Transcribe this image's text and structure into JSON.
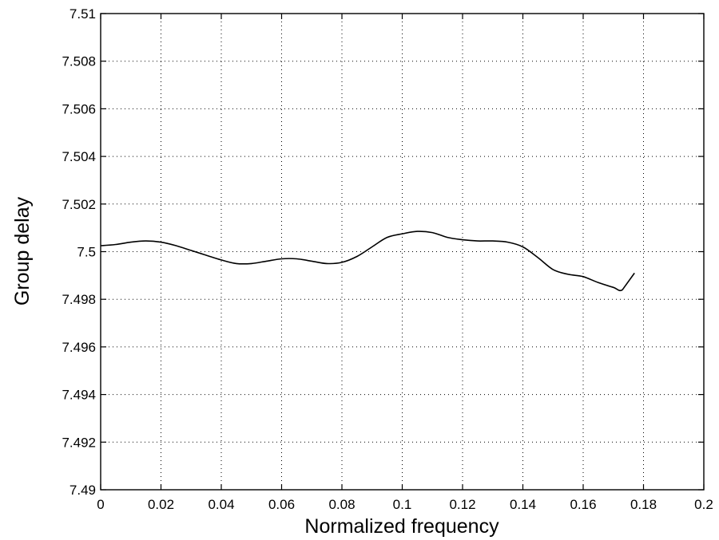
{
  "chart_data": {
    "type": "line",
    "title": "",
    "xlabel": "Normalized frequency",
    "ylabel": "Group delay",
    "xlim": [
      0,
      0.2
    ],
    "ylim": [
      7.49,
      7.51
    ],
    "grid": true,
    "x_ticks": [
      0,
      0.02,
      0.04,
      0.06,
      0.08,
      0.1,
      0.12,
      0.14,
      0.16,
      0.18,
      0.2
    ],
    "x_tick_labels": [
      "0",
      "0.02",
      "0.04",
      "0.06",
      "0.08",
      "0.1",
      "0.12",
      "0.14",
      "0.16",
      "0.18",
      "0.2"
    ],
    "y_ticks": [
      7.49,
      7.492,
      7.494,
      7.496,
      7.498,
      7.5,
      7.502,
      7.504,
      7.506,
      7.508,
      7.51
    ],
    "y_tick_labels": [
      "7.49",
      "7.492",
      "7.494",
      "7.496",
      "7.498",
      "7.5",
      "7.502",
      "7.504",
      "7.506",
      "7.508",
      "7.51"
    ],
    "series": [
      {
        "x": [
          0,
          0.005,
          0.01,
          0.015,
          0.02,
          0.025,
          0.03,
          0.035,
          0.04,
          0.045,
          0.05,
          0.055,
          0.06,
          0.065,
          0.07,
          0.075,
          0.08,
          0.085,
          0.09,
          0.095,
          0.1,
          0.105,
          0.11,
          0.115,
          0.12,
          0.125,
          0.13,
          0.135,
          0.14,
          0.145,
          0.15,
          0.155,
          0.16,
          0.165,
          0.17,
          0.173,
          0.177
        ],
        "y": [
          7.50025,
          7.5003,
          7.5004,
          7.50045,
          7.5004,
          7.50025,
          7.50005,
          7.49985,
          7.49965,
          7.4995,
          7.4995,
          7.4996,
          7.4997,
          7.4997,
          7.4996,
          7.4995,
          7.49955,
          7.4998,
          7.5002,
          7.5006,
          7.50075,
          7.50085,
          7.5008,
          7.5006,
          7.5005,
          7.50045,
          7.50045,
          7.5004,
          7.5002,
          7.49975,
          7.49925,
          7.49905,
          7.49895,
          7.4987,
          7.4985,
          7.4984,
          7.4991
        ]
      }
    ]
  }
}
